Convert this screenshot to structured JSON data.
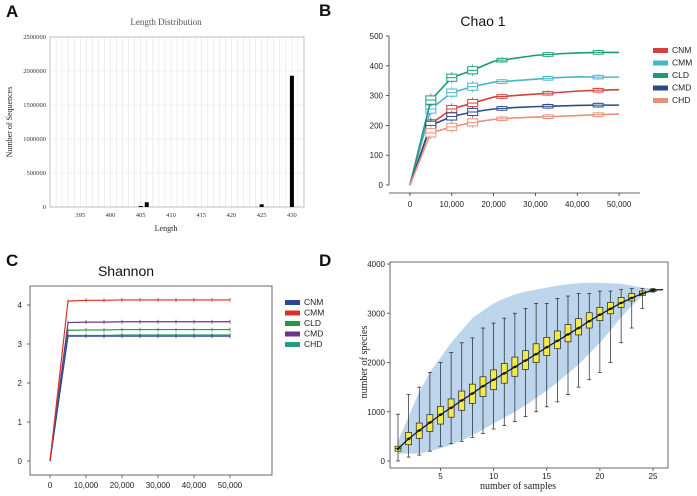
{
  "panels": {
    "a": "A",
    "b": "B",
    "c": "C",
    "d": "D"
  },
  "colors": {
    "CNM": "#d6403a",
    "CMM": "#4ab5c8",
    "CLD": "#1f9a78",
    "CMD": "#2d4a86",
    "CHD": "#e8907a",
    "C_CNM": "#2c4a8a",
    "C_CMM": "#d9302b",
    "C_CLD": "#1f9a4a",
    "C_CMD": "#6a3590",
    "C_CHD": "#2a9a88",
    "box_fill": "#f2ea4a",
    "band": "#bcd4ec"
  },
  "chart_data": [
    {
      "id": "A",
      "type": "bar",
      "title": "Length Distribution",
      "xlabel": "Length",
      "ylabel": "Number of Sequences",
      "xlim": [
        390,
        432
      ],
      "ylim": [
        0,
        2500000
      ],
      "xticks": [
        "395",
        "400",
        "405",
        "410",
        "415",
        "420",
        "425",
        "430"
      ],
      "yticks": [
        "0",
        "500000",
        "1000000",
        "1500000",
        "2000000",
        "2500000"
      ],
      "x": [
        405,
        406,
        425,
        430
      ],
      "values": [
        15000,
        70000,
        40000,
        1930000
      ]
    },
    {
      "id": "B",
      "type": "line",
      "title": "Chao 1",
      "xlabel": "",
      "ylabel": "",
      "xlim": [
        -5000,
        55000
      ],
      "ylim": [
        0,
        500
      ],
      "xticks": [
        "0",
        "10,000",
        "20,000",
        "30,000",
        "40,000",
        "50,000"
      ],
      "yticks": [
        "0",
        "100",
        "200",
        "300",
        "400",
        "500"
      ],
      "x": [
        0,
        5000,
        10000,
        15000,
        20000,
        25000,
        30000,
        35000,
        40000,
        45000,
        50000
      ],
      "box_x": [
        5000,
        10000,
        15000,
        22000,
        33000,
        45000
      ],
      "series": [
        {
          "name": "CNM",
          "values": [
            0,
            205,
            255,
            275,
            295,
            300,
            305,
            310,
            315,
            318,
            320
          ]
        },
        {
          "name": "CMM",
          "values": [
            0,
            255,
            310,
            330,
            345,
            350,
            355,
            360,
            363,
            362,
            362
          ]
        },
        {
          "name": "CLD",
          "values": [
            0,
            285,
            360,
            385,
            415,
            425,
            435,
            440,
            443,
            445,
            445
          ]
        },
        {
          "name": "CMD",
          "values": [
            0,
            200,
            230,
            245,
            255,
            260,
            263,
            265,
            267,
            268,
            268
          ]
        },
        {
          "name": "CHD",
          "values": [
            0,
            175,
            195,
            210,
            220,
            225,
            228,
            230,
            233,
            236,
            238
          ]
        }
      ]
    },
    {
      "id": "C",
      "type": "line",
      "title": "Shannon",
      "xlabel": "",
      "ylabel": "",
      "xlim": [
        -2000,
        54000
      ],
      "ylim": [
        0,
        4.4
      ],
      "xticks": [
        "0",
        "10,000",
        "20,000",
        "30,000",
        "40,000",
        "50,000"
      ],
      "yticks": [
        "0",
        "1",
        "2",
        "3",
        "4"
      ],
      "x": [
        0,
        5000,
        10000,
        15000,
        20000,
        25000,
        30000,
        35000,
        40000,
        45000,
        50000
      ],
      "series": [
        {
          "name": "CNM",
          "values": [
            0,
            3.2,
            3.2,
            3.2,
            3.2,
            3.2,
            3.2,
            3.2,
            3.2,
            3.2,
            3.2
          ]
        },
        {
          "name": "CMM",
          "values": [
            0,
            4.1,
            4.12,
            4.12,
            4.13,
            4.13,
            4.13,
            4.13,
            4.13,
            4.13,
            4.13
          ]
        },
        {
          "name": "CLD",
          "values": [
            0,
            3.35,
            3.36,
            3.36,
            3.37,
            3.37,
            3.37,
            3.37,
            3.37,
            3.37,
            3.37
          ]
        },
        {
          "name": "CMD",
          "values": [
            0,
            3.55,
            3.56,
            3.56,
            3.57,
            3.57,
            3.57,
            3.57,
            3.57,
            3.57,
            3.57
          ]
        },
        {
          "name": "CHD",
          "values": [
            0,
            3.22,
            3.22,
            3.22,
            3.23,
            3.23,
            3.23,
            3.23,
            3.23,
            3.23,
            3.23
          ]
        }
      ]
    },
    {
      "id": "D",
      "type": "box",
      "title": "",
      "xlabel": "number of samples",
      "ylabel": "number of species",
      "xlim": [
        0.5,
        26.5
      ],
      "ylim": [
        0,
        4000
      ],
      "xticks": [
        "5",
        "10",
        "15",
        "20",
        "25"
      ],
      "yticks": [
        "0",
        "1000",
        "2000",
        "3000",
        "4000"
      ],
      "x": [
        1,
        2,
        3,
        4,
        5,
        6,
        7,
        8,
        9,
        10,
        11,
        12,
        13,
        14,
        15,
        16,
        17,
        18,
        19,
        20,
        21,
        22,
        23,
        24,
        25
      ],
      "median": [
        250,
        450,
        620,
        780,
        940,
        1080,
        1230,
        1370,
        1520,
        1650,
        1780,
        1910,
        2040,
        2170,
        2310,
        2440,
        2570,
        2700,
        2840,
        2970,
        3090,
        3210,
        3310,
        3400,
        3470
      ],
      "q1": [
        200,
        330,
        460,
        600,
        750,
        890,
        1030,
        1170,
        1310,
        1450,
        1580,
        1720,
        1860,
        2000,
        2140,
        2280,
        2420,
        2560,
        2700,
        2850,
        2990,
        3120,
        3250,
        3360,
        3440
      ],
      "q3": [
        300,
        580,
        770,
        940,
        1110,
        1260,
        1420,
        1560,
        1710,
        1850,
        1980,
        2110,
        2240,
        2380,
        2510,
        2640,
        2770,
        2890,
        3010,
        3120,
        3220,
        3320,
        3400,
        3450,
        3490
      ],
      "low": [
        0,
        80,
        120,
        200,
        300,
        350,
        400,
        480,
        560,
        650,
        720,
        800,
        900,
        1000,
        1100,
        1200,
        1350,
        1500,
        1650,
        1800,
        2000,
        2400,
        2700,
        3100,
        3430
      ],
      "high": [
        950,
        1350,
        1500,
        1800,
        2000,
        2200,
        2400,
        2500,
        2700,
        2800,
        2900,
        3000,
        3100,
        3200,
        3200,
        3300,
        3350,
        3400,
        3400,
        3450,
        3450,
        3480,
        3500,
        3500,
        3500
      ],
      "band_low": [
        150,
        150,
        150,
        200,
        260,
        330,
        420,
        520,
        640,
        760,
        880,
        1000,
        1130,
        1280,
        1430,
        1600,
        1780,
        1960,
        2180,
        2400,
        2650,
        2920,
        3150,
        3360,
        3440
      ],
      "band_high": [
        400,
        900,
        1400,
        1800,
        2100,
        2400,
        2650,
        2900,
        3050,
        3200,
        3300,
        3380,
        3440,
        3480,
        3520,
        3560,
        3590,
        3610,
        3620,
        3620,
        3610,
        3600,
        3560,
        3520,
        3500
      ]
    }
  ]
}
